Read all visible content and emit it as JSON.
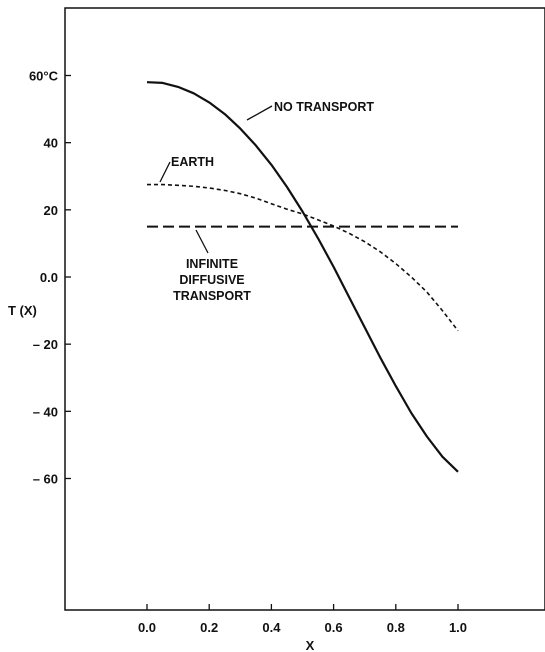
{
  "chart_data": {
    "type": "line",
    "title": "",
    "xlabel": "X",
    "ylabel": "T (X)",
    "xlim": [
      -0.2,
      1.15
    ],
    "ylim": [
      -100,
      80
    ],
    "grid": false,
    "x_ticks": [
      0.0,
      0.2,
      0.4,
      0.6,
      0.8,
      1.0
    ],
    "x_tick_labels": [
      "0.0",
      "0.2",
      "0.4",
      "0.6",
      "0.8",
      "1.0"
    ],
    "y_ticks": [
      60,
      40,
      20,
      0,
      -20,
      -40,
      -60
    ],
    "y_tick_labels": [
      "60°C",
      "40",
      "20",
      "0.0",
      "– 20",
      "– 40",
      "– 60"
    ],
    "series": [
      {
        "name": "NO TRANSPORT",
        "style": "solid",
        "x": [
          0.0,
          0.05,
          0.1,
          0.15,
          0.2,
          0.25,
          0.3,
          0.35,
          0.4,
          0.45,
          0.5,
          0.55,
          0.6,
          0.65,
          0.7,
          0.75,
          0.8,
          0.85,
          0.9,
          0.95,
          1.0
        ],
        "y": [
          58,
          57.8,
          56.6,
          54.7,
          52.0,
          48.5,
          44.2,
          39.2,
          33.4,
          26.8,
          19.5,
          11.5,
          3.0,
          -6.0,
          -15.0,
          -24.0,
          -32.5,
          -40.5,
          -47.5,
          -53.5,
          -58
        ]
      },
      {
        "name": "EARTH",
        "style": "dotted",
        "x": [
          0.0,
          0.05,
          0.1,
          0.15,
          0.2,
          0.25,
          0.3,
          0.35,
          0.4,
          0.45,
          0.5,
          0.55,
          0.6,
          0.65,
          0.7,
          0.75,
          0.8,
          0.85,
          0.9,
          0.95,
          1.0
        ],
        "y": [
          27.5,
          27.5,
          27.3,
          27.0,
          26.5,
          25.8,
          24.8,
          23.5,
          21.8,
          20.2,
          18.8,
          17.0,
          15.2,
          13.0,
          10.5,
          7.5,
          4.0,
          0.0,
          -4.5,
          -10.0,
          -16.0
        ]
      },
      {
        "name": "INFINITE DIFFUSIVE TRANSPORT",
        "style": "dashed",
        "x": [
          0.0,
          1.0
        ],
        "y": [
          15.0,
          15.0
        ]
      }
    ],
    "annotations": [
      {
        "text": "NO TRANSPORT",
        "points_to_series": "NO TRANSPORT"
      },
      {
        "text": "EARTH",
        "points_to_series": "EARTH"
      },
      {
        "text": "INFINITE",
        "points_to_series": "INFINITE DIFFUSIVE TRANSPORT"
      },
      {
        "text": "DIFFUSIVE",
        "points_to_series": "INFINITE DIFFUSIVE TRANSPORT"
      },
      {
        "text": "TRANSPORT",
        "points_to_series": "INFINITE DIFFUSIVE TRANSPORT"
      }
    ]
  }
}
